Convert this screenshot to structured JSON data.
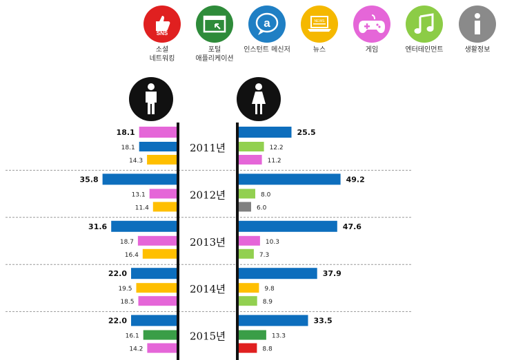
{
  "categories": [
    {
      "key": "sns",
      "label": "소셜\n네트워킹",
      "icon": "thumbs-up-sns-icon",
      "color": "#e02020",
      "badge": "SNS"
    },
    {
      "key": "portal",
      "label": "포털\n애플리케이션",
      "icon": "browser-window-icon",
      "color": "#2e8b3a"
    },
    {
      "key": "im",
      "label": "인스턴트 메신저",
      "icon": "speech-bubble-a-icon",
      "color": "#1f7fc4"
    },
    {
      "key": "news",
      "label": "뉴스",
      "icon": "laptop-news-icon",
      "color": "#f5b800",
      "badge": "NEWS"
    },
    {
      "key": "game",
      "label": "게임",
      "icon": "gamepad-icon",
      "color": "#e566d8"
    },
    {
      "key": "ent",
      "label": "엔터테인먼트",
      "icon": "music-note-icon",
      "color": "#8ccc46"
    },
    {
      "key": "life",
      "label": "생활정보",
      "icon": "info-icon",
      "color": "#8a8a8a",
      "badge": "i"
    }
  ],
  "colors": {
    "sns": "#e02020",
    "portal": "#3a9e47",
    "im": "#0d6ebd",
    "news": "#ffbf00",
    "game": "#e566d8",
    "ent": "#92d050",
    "life": "#808080",
    "divider": "#999999",
    "axis": "#111111"
  },
  "chart_data": {
    "type": "bar",
    "description_axis": "Two-sided horizontal bar chart by year: male (left) vs female (right), top 3 app categories",
    "years": [
      {
        "label": "2011년",
        "male": [
          {
            "value": 18.1,
            "text": "18.1",
            "category": "game"
          },
          {
            "value": 18.1,
            "text": "18.1",
            "category": "im"
          },
          {
            "value": 14.3,
            "text": "14.3",
            "category": "news"
          }
        ],
        "female": [
          {
            "value": 25.5,
            "text": "25.5",
            "category": "im"
          },
          {
            "value": 12.2,
            "text": "12.2",
            "category": "ent"
          },
          {
            "value": 11.2,
            "text": "11.2",
            "category": "game"
          }
        ]
      },
      {
        "label": "2012년",
        "male": [
          {
            "value": 35.8,
            "text": "35.8",
            "category": "im"
          },
          {
            "value": 13.1,
            "text": "13.1",
            "category": "game"
          },
          {
            "value": 11.4,
            "text": "11.4",
            "category": "news"
          }
        ],
        "female": [
          {
            "value": 49.2,
            "text": "49.2",
            "category": "im"
          },
          {
            "value": 8.0,
            "text": "8.0",
            "category": "ent"
          },
          {
            "value": 6.0,
            "text": "6.0",
            "category": "life"
          }
        ]
      },
      {
        "label": "2013년",
        "male": [
          {
            "value": 31.6,
            "text": "31.6",
            "category": "im"
          },
          {
            "value": 18.7,
            "text": "18.7",
            "category": "game"
          },
          {
            "value": 16.4,
            "text": "16.4",
            "category": "news"
          }
        ],
        "female": [
          {
            "value": 47.6,
            "text": "47.6",
            "category": "im"
          },
          {
            "value": 10.3,
            "text": "10.3",
            "category": "game"
          },
          {
            "value": 7.3,
            "text": "7.3",
            "category": "ent"
          }
        ]
      },
      {
        "label": "2014년",
        "male": [
          {
            "value": 22.0,
            "text": "22.0",
            "category": "im"
          },
          {
            "value": 19.5,
            "text": "19.5",
            "category": "news"
          },
          {
            "value": 18.5,
            "text": "18.5",
            "category": "game"
          }
        ],
        "female": [
          {
            "value": 37.9,
            "text": "37.9",
            "category": "im"
          },
          {
            "value": 9.8,
            "text": "9.8",
            "category": "news"
          },
          {
            "value": 8.9,
            "text": "8.9",
            "category": "ent"
          }
        ]
      },
      {
        "label": "2015년",
        "male": [
          {
            "value": 22.0,
            "text": "22.0",
            "category": "im"
          },
          {
            "value": 16.1,
            "text": "16.1",
            "category": "portal"
          },
          {
            "value": 14.2,
            "text": "14.2",
            "category": "game"
          }
        ],
        "female": [
          {
            "value": 33.5,
            "text": "33.5",
            "category": "im"
          },
          {
            "value": 13.3,
            "text": "13.3",
            "category": "portal"
          },
          {
            "value": 8.8,
            "text": "8.8",
            "category": "sns"
          }
        ]
      }
    ]
  }
}
